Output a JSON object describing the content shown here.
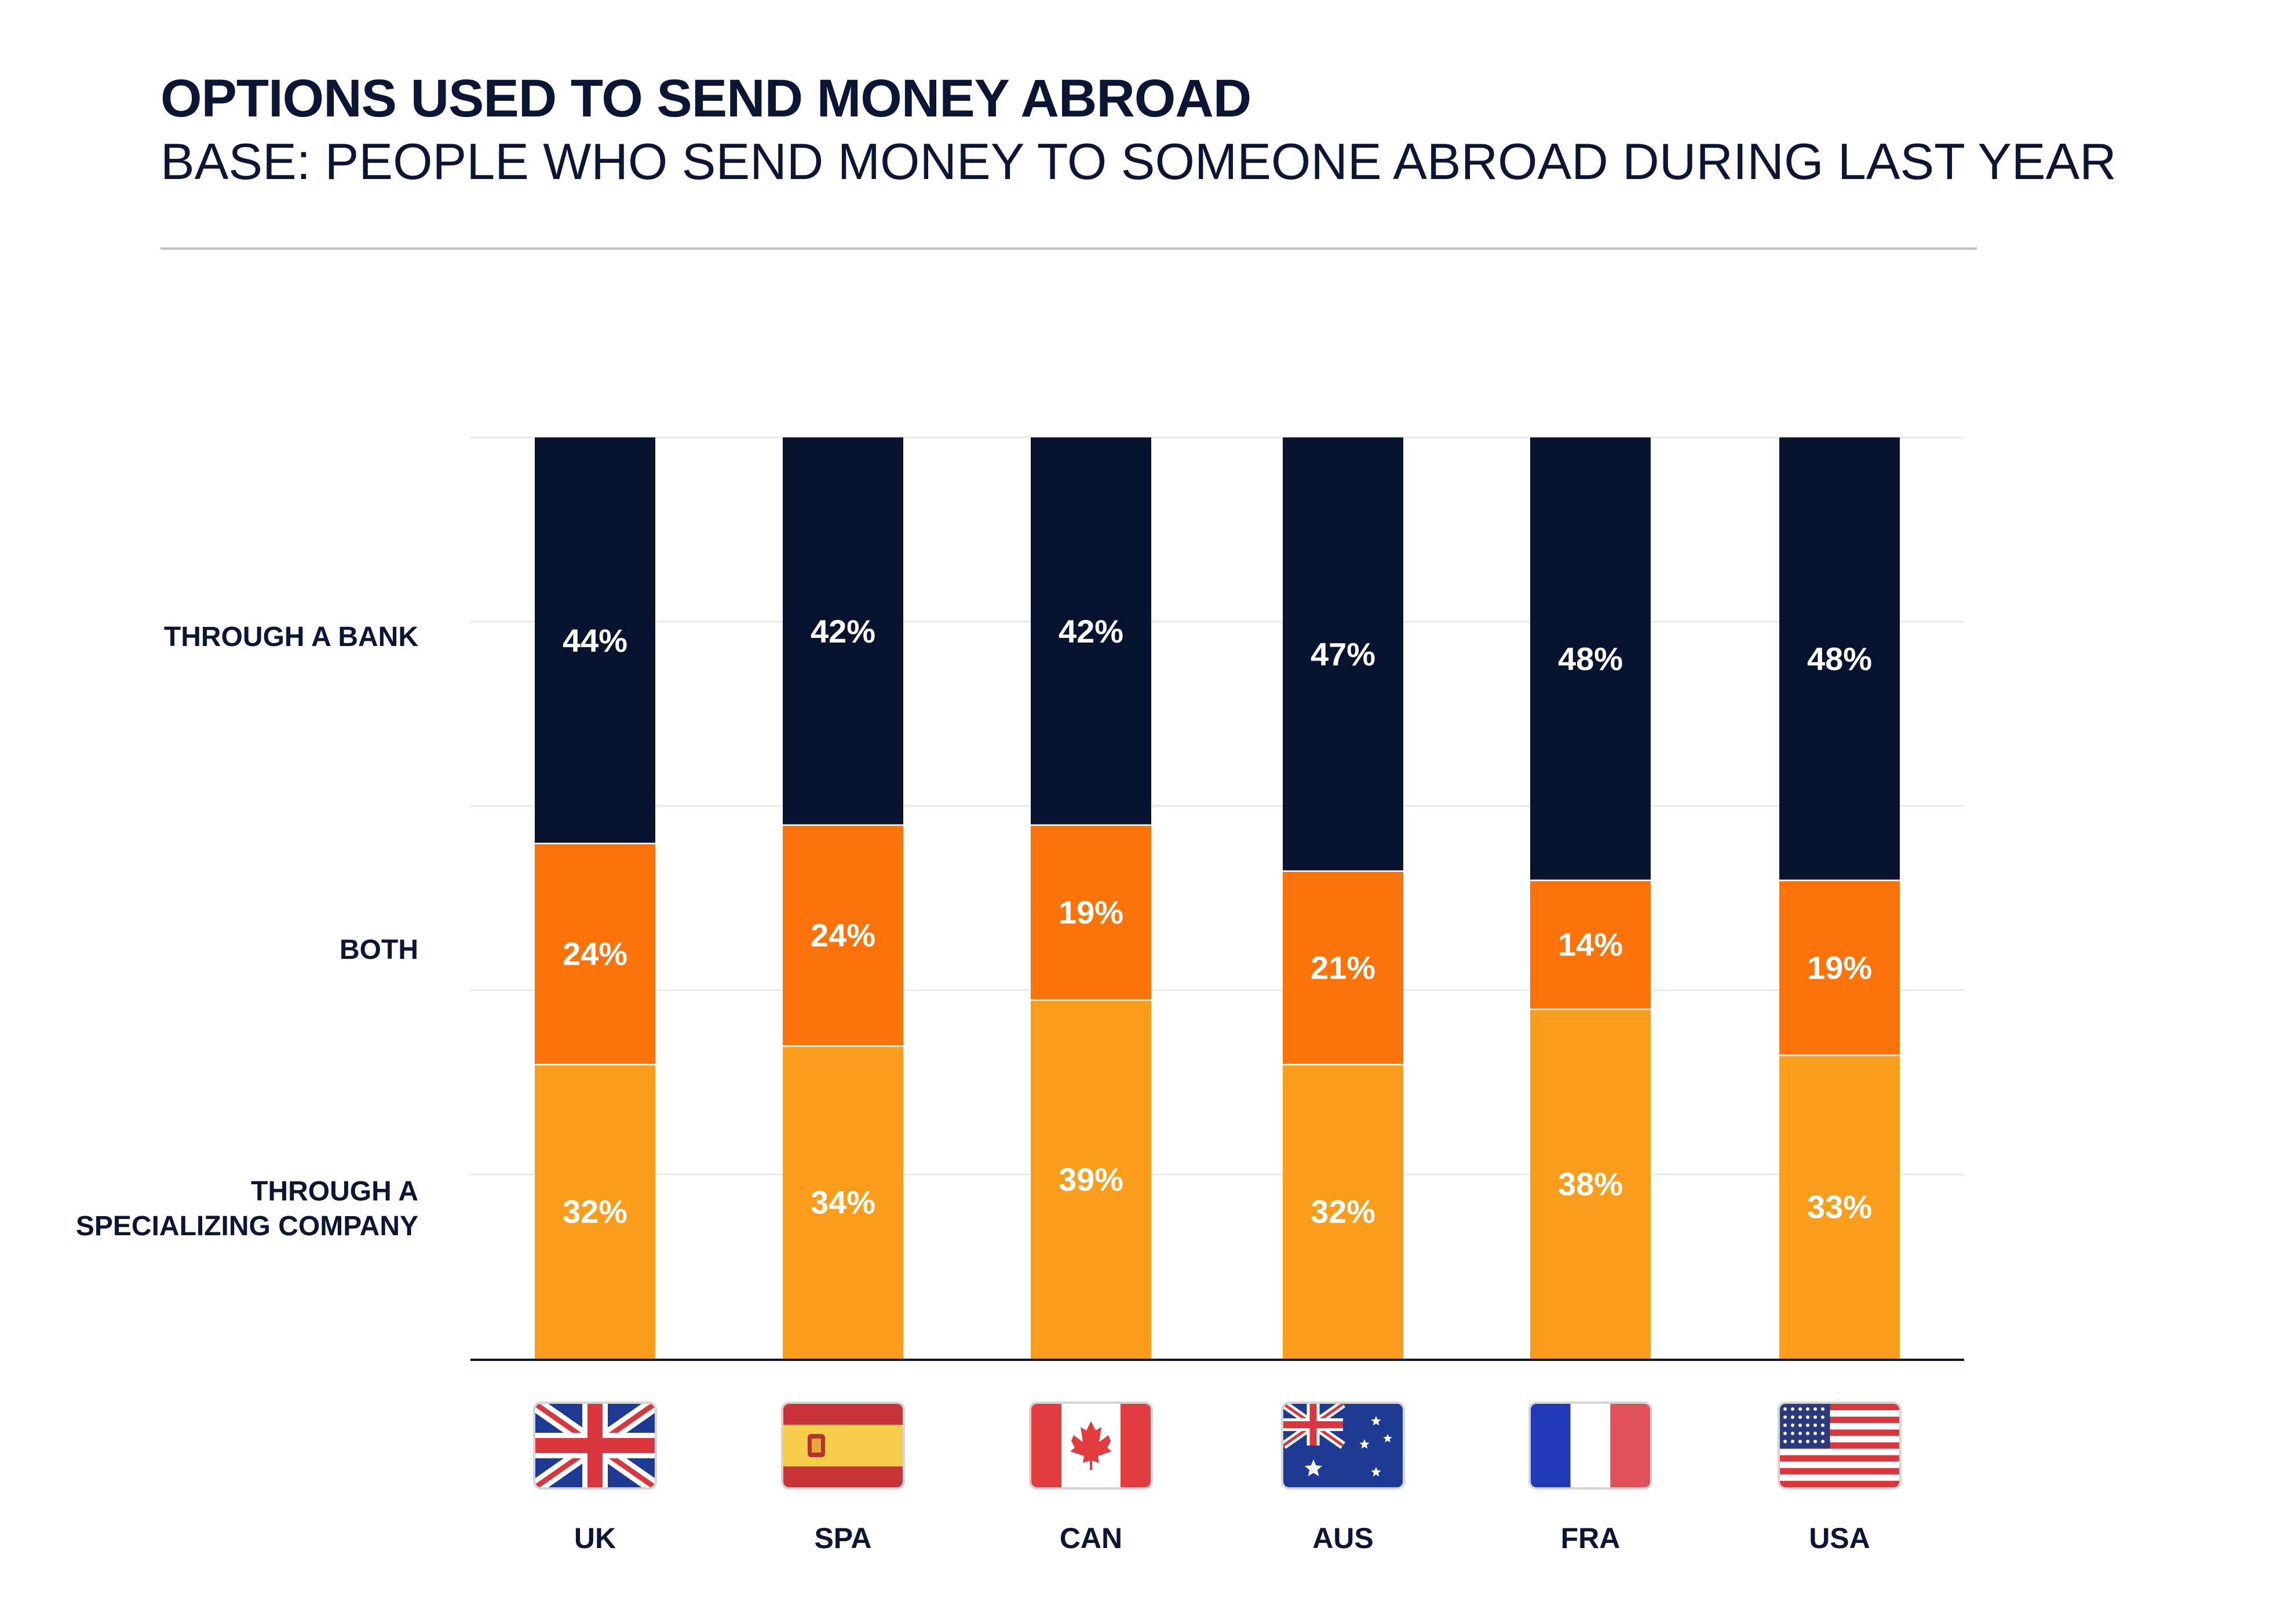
{
  "header": {
    "title": "OPTIONS USED TO SEND MONEY ABROAD",
    "subtitle": "BASE: PEOPLE WHO SEND MONEY TO SOMEONE ABROAD DURING LAST YEAR"
  },
  "colors": {
    "bank": "#07132f",
    "both": "#fc720b",
    "company": "#fa9c1c",
    "text": "#0a1633",
    "grid": "#e6e9ed",
    "axis": "#0a1633",
    "value_text": "#ffffff"
  },
  "chart_data": {
    "type": "bar",
    "stacked": true,
    "title": "OPTIONS USED TO SEND MONEY ABROAD",
    "subtitle": "BASE: PEOPLE WHO SEND MONEY TO SOMEONE ABROAD DURING LAST YEAR",
    "categories": [
      "UK",
      "SPA",
      "CAN",
      "AUS",
      "FRA",
      "USA"
    ],
    "category_icons": [
      "uk-flag-icon",
      "spain-flag-icon",
      "canada-flag-icon",
      "australia-flag-icon",
      "france-flag-icon",
      "usa-flag-icon"
    ],
    "series": [
      {
        "name": "THROUGH A SPECIALIZING COMPANY",
        "label_lines": [
          "THROUGH A",
          "SPECIALIZING COMPANY"
        ],
        "values": [
          32,
          34,
          39,
          32,
          38,
          33
        ],
        "labels": [
          "32%",
          "34%",
          "39%",
          "32%",
          "38%",
          "33%"
        ]
      },
      {
        "name": "BOTH",
        "label_lines": [
          "BOTH"
        ],
        "values": [
          24,
          24,
          19,
          21,
          14,
          19
        ],
        "labels": [
          "24%",
          "24%",
          "19%",
          "21%",
          "14%",
          "19%"
        ]
      },
      {
        "name": "THROUGH A BANK",
        "label_lines": [
          "THROUGH A BANK"
        ],
        "values": [
          44,
          42,
          42,
          47,
          48,
          48
        ],
        "labels": [
          "44%",
          "42%",
          "42%",
          "47%",
          "48%",
          "48%"
        ]
      }
    ],
    "ylim": [
      0,
      100
    ],
    "grid": true,
    "legend": "left",
    "xlabel": "",
    "ylabel": ""
  }
}
